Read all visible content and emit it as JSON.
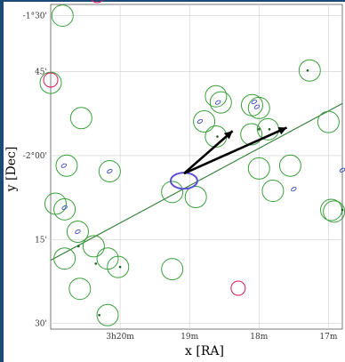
{
  "chart_data": {
    "type": "scatter",
    "title": "",
    "xlabel": "x [RA]",
    "ylabel": "y [Dec]",
    "x_ticks": [
      "3h20m",
      "19m",
      "18m",
      "17m"
    ],
    "y_ticks": [
      "-1°30'",
      "45'",
      "-2°00'",
      "15'",
      "30'"
    ],
    "xlim_minutes": [
      21.0,
      16.8
    ],
    "ylim_arcmin": [
      -93,
      -151
    ],
    "grid": true,
    "green_circles": [
      [
        20.83,
        -95.0
      ],
      [
        21.0,
        -107.0
      ],
      [
        20.56,
        -113.3
      ],
      [
        20.77,
        -121.8
      ],
      [
        20.8,
        -129.6
      ],
      [
        20.93,
        -128.6
      ],
      [
        20.15,
        -122.8
      ],
      [
        20.61,
        -133.6
      ],
      [
        20.38,
        -136.2
      ],
      [
        20.18,
        -138.4
      ],
      [
        20.8,
        -138.4
      ],
      [
        20.03,
        -139.9
      ],
      [
        20.58,
        -143.8
      ],
      [
        20.18,
        -148.5
      ],
      [
        18.79,
        -113.9
      ],
      [
        18.62,
        -109.4
      ],
      [
        18.55,
        -110.5
      ],
      [
        18.62,
        -116.6
      ],
      [
        18.91,
        -127.4
      ],
      [
        19.25,
        -126.5
      ],
      [
        18.1,
        -111.0
      ],
      [
        18.0,
        -111.5
      ],
      [
        18.11,
        -116.2
      ],
      [
        17.87,
        -115.3
      ],
      [
        18.0,
        -122.3
      ],
      [
        17.8,
        -126.3
      ],
      [
        17.55,
        -121.8
      ],
      [
        17.27,
        -104.8
      ],
      [
        17.0,
        -114.0
      ],
      [
        16.96,
        -129.7
      ],
      [
        16.92,
        -130.0
      ],
      [
        19.25,
        -140.3
      ]
    ],
    "magenta_circles": [
      [
        20.33,
        -91.4
      ],
      [
        21.0,
        -106.5
      ],
      [
        18.3,
        -143.7
      ]
    ],
    "blue_ellipses": [
      [
        20.81,
        -121.8
      ],
      [
        20.8,
        -129.3
      ],
      [
        20.15,
        -122.8
      ],
      [
        20.61,
        -133.6
      ],
      [
        18.85,
        -113.9
      ],
      [
        18.59,
        -110.5
      ],
      [
        18.07,
        -110.4
      ],
      [
        18.03,
        -111.3
      ],
      [
        17.5,
        -126.0
      ],
      [
        16.8,
        -122.6
      ]
    ],
    "markers": [
      [
        17.3,
        -104.8
      ],
      [
        18.6,
        -116.6
      ],
      [
        20.0,
        -139.9
      ],
      [
        20.3,
        -148.5
      ],
      [
        17.85,
        -115.3
      ],
      [
        18.0,
        -115.3
      ],
      [
        16.8,
        -129.7
      ],
      [
        20.6,
        -136.2
      ],
      [
        20.35,
        -139.3
      ]
    ],
    "trajectory_line": [
      [
        21.0,
        -138.7
      ],
      [
        16.8,
        -110.7
      ]
    ],
    "target_ellipse": [
      19.08,
      -124.5
    ],
    "vectors": [
      {
        "from": [
          19.08,
          -123.2
        ],
        "to": [
          18.38,
          -115.6
        ]
      },
      {
        "from": [
          19.08,
          -123.2
        ],
        "to": [
          17.6,
          -115.0
        ]
      }
    ]
  }
}
